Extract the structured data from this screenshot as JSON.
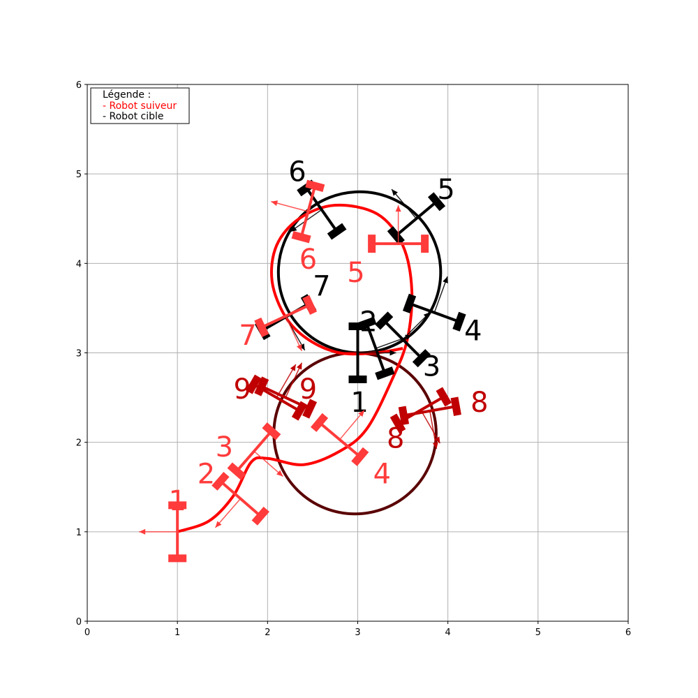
{
  "chart_data": {
    "type": "scatter",
    "title": "",
    "xlabel": "",
    "ylabel": "",
    "xlim": [
      0,
      6
    ],
    "ylim": [
      0,
      6
    ],
    "xticks": [
      0,
      1,
      2,
      3,
      4,
      5,
      6
    ],
    "yticks": [
      0,
      1,
      2,
      3,
      4,
      5,
      6
    ],
    "grid": true,
    "legend": {
      "placement": "top-left",
      "title": "Légende :",
      "entries": [
        {
          "label": "- Robot suiveur",
          "color": "#ff0000"
        },
        {
          "label": "- Robot cible",
          "color": "#000000"
        }
      ]
    },
    "colors": {
      "follower": "#ff0000",
      "follower_body": "#ff3b3b",
      "target": "#000000",
      "dark_red": "#c00000"
    },
    "target_trajectory": [
      {
        "shape": "circle",
        "center": [
          3.02,
          3.9
        ],
        "radius": 0.9
      },
      {
        "shape": "circle",
        "center": [
          2.97,
          2.1
        ],
        "radius": 0.9
      }
    ],
    "follower_trajectory": [
      [
        1.0,
        1.0
      ],
      [
        1.35,
        1.12
      ],
      [
        1.62,
        1.4
      ],
      [
        1.82,
        1.78
      ],
      [
        2.0,
        1.82
      ],
      [
        2.4,
        1.75
      ],
      [
        2.8,
        1.9
      ],
      [
        3.1,
        2.15
      ],
      [
        3.38,
        2.7
      ],
      [
        3.55,
        3.15
      ],
      [
        3.6,
        3.7
      ],
      [
        3.5,
        4.2
      ],
      [
        3.22,
        4.55
      ],
      [
        2.75,
        4.65
      ],
      [
        2.35,
        4.5
      ],
      [
        2.1,
        4.2
      ],
      [
        2.05,
        3.8
      ],
      [
        2.2,
        3.4
      ],
      [
        2.45,
        3.15
      ],
      [
        2.8,
        3.0
      ],
      [
        3.2,
        3.0
      ],
      [
        3.5,
        3.05
      ]
    ],
    "follower_robots": [
      {
        "label": "1",
        "x": 1.0,
        "y": 1.0,
        "theta_deg": 180,
        "label_pos": [
          1.0,
          1.35
        ],
        "color": "#ff3b3b"
      },
      {
        "label": "2",
        "x": 1.7,
        "y": 1.37,
        "theta_deg": 229,
        "label_pos": [
          1.32,
          1.65
        ],
        "color": "#ff3b3b"
      },
      {
        "label": "3",
        "x": 1.85,
        "y": 1.9,
        "theta_deg": -41,
        "label_pos": [
          1.52,
          1.95
        ],
        "color": "#ff3b3b"
      },
      {
        "label": "4",
        "x": 2.8,
        "y": 2.03,
        "theta_deg": 50,
        "label_pos": [
          3.27,
          1.65
        ],
        "color": "#ff3b3b"
      },
      {
        "label": "5",
        "x": 3.45,
        "y": 4.22,
        "theta_deg": 90,
        "label_pos": [
          2.98,
          3.9
        ],
        "color": "#ff3b3b"
      },
      {
        "label": "6",
        "x": 2.45,
        "y": 4.58,
        "theta_deg": 165,
        "label_pos": [
          2.45,
          4.05
        ],
        "color": "#ff3b3b"
      },
      {
        "label": "7",
        "x": 2.2,
        "y": 3.41,
        "theta_deg": -65,
        "label_pos": [
          1.78,
          3.2
        ],
        "color": "#ff3b3b"
      },
      {
        "label": "8",
        "x": 3.7,
        "y": 2.36,
        "theta_deg": -60,
        "label_pos": [
          3.42,
          2.05
        ],
        "color": "#c00000"
      },
      {
        "label": "9",
        "x": 2.2,
        "y": 2.5,
        "theta_deg": 65,
        "label_pos": [
          2.45,
          2.6
        ],
        "color": "#c00000"
      }
    ],
    "target_robots": [
      {
        "label": "1",
        "x": 3.0,
        "y": 3.0,
        "theta_deg": 0,
        "label_pos": [
          3.02,
          2.45
        ]
      },
      {
        "label": "2",
        "x": 3.2,
        "y": 3.05,
        "theta_deg": 20,
        "label_pos": [
          3.12,
          3.35
        ]
      },
      {
        "label": "3",
        "x": 3.5,
        "y": 3.15,
        "theta_deg": 45,
        "label_pos": [
          3.82,
          2.85
        ]
      },
      {
        "label": "4",
        "x": 3.85,
        "y": 3.45,
        "theta_deg": 70,
        "label_pos": [
          4.28,
          3.25
        ]
      },
      {
        "label": "5",
        "x": 3.65,
        "y": 4.5,
        "theta_deg": 130,
        "label_pos": [
          3.98,
          4.83
        ]
      },
      {
        "label": "6",
        "x": 2.6,
        "y": 4.6,
        "theta_deg": 215,
        "label_pos": [
          2.33,
          5.03
        ]
      },
      {
        "label": "7",
        "x": 2.2,
        "y": 3.4,
        "theta_deg": -60,
        "label_pos": [
          2.6,
          3.75
        ]
      },
      {
        "label": "9",
        "x": 2.1,
        "y": 2.5,
        "theta_deg": 60,
        "label_pos": [
          1.72,
          2.6
        ],
        "color": "#c00000"
      },
      {
        "label": "8",
        "x": 3.8,
        "y": 2.35,
        "theta_deg": -80,
        "label_pos": [
          4.35,
          2.45
        ],
        "color": "#c00000"
      }
    ]
  }
}
